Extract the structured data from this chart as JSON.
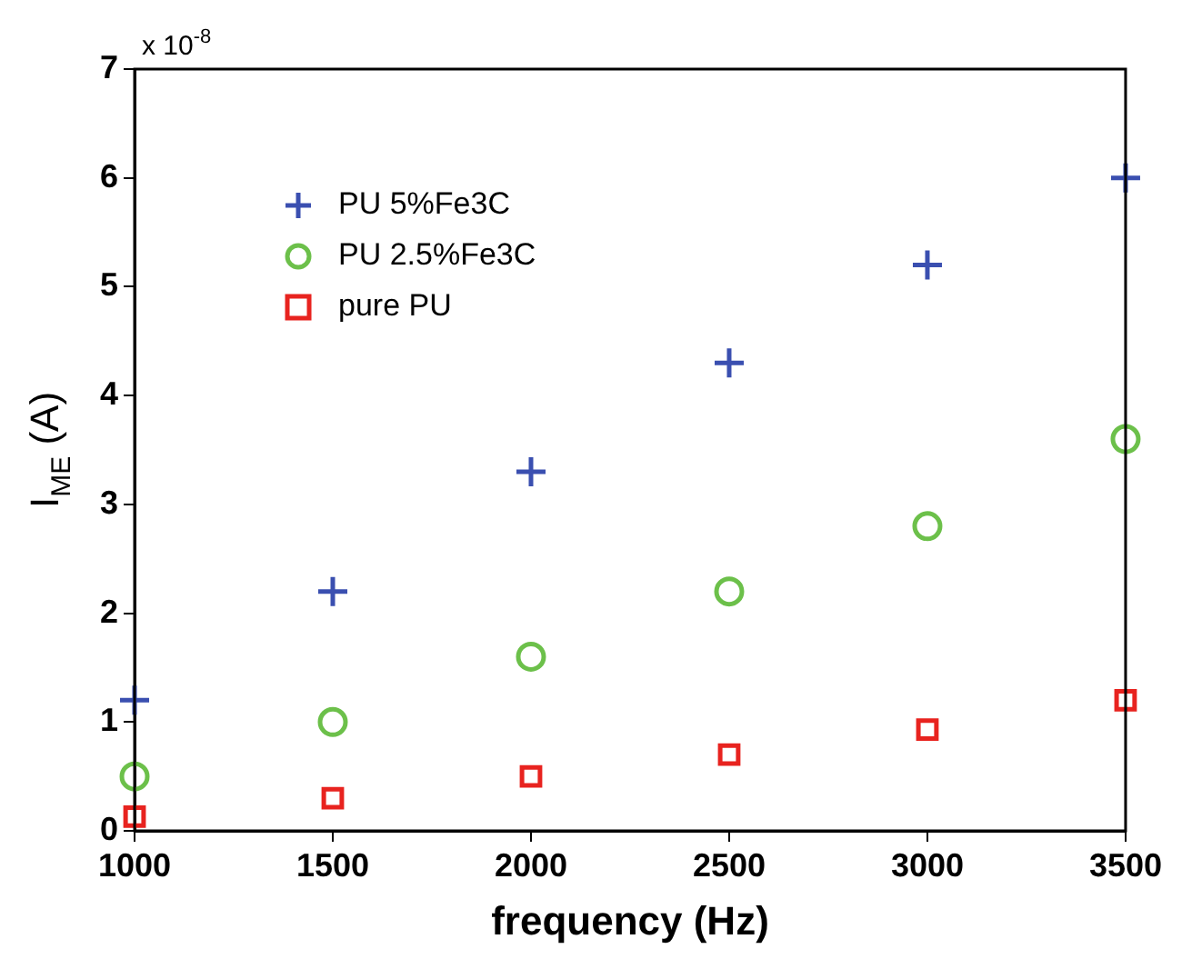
{
  "chart_data": {
    "type": "scatter",
    "xlabel": "frequency (Hz)",
    "ylabel": "I$_{ME}$ (A)",
    "annotations": [
      "x 10$^{-8}$"
    ],
    "xlim": [
      1000,
      3500
    ],
    "xticks": [
      1000,
      1500,
      2000,
      2500,
      3000,
      3500
    ],
    "ylim": [
      0,
      7
    ],
    "yticks": [
      0,
      1,
      2,
      3,
      4,
      5,
      6,
      7
    ],
    "grid": false,
    "legend": "top left",
    "series": [
      {
        "name": "PU 5%Fe3C",
        "color": "#3a4fb0",
        "marker": "cross",
        "x": [
          1000,
          1500,
          2000,
          2500,
          3000,
          3500
        ],
        "values": [
          1.2,
          2.2,
          3.3,
          4.3,
          5.2,
          6.0
        ]
      },
      {
        "name": "PU 2.5%Fe3C",
        "color": "#6cc04a",
        "marker": "circle",
        "x": [
          1000,
          1500,
          2000,
          2500,
          3000,
          3500
        ],
        "values": [
          0.5,
          1.0,
          1.6,
          2.2,
          2.8,
          3.6
        ]
      },
      {
        "name": "pure PU",
        "color": "#e8231f",
        "marker": "square",
        "x": [
          1000,
          1500,
          2000,
          2500,
          3000,
          3500
        ],
        "values": [
          0.13,
          0.3,
          0.5,
          0.7,
          0.93,
          1.2
        ]
      }
    ]
  }
}
